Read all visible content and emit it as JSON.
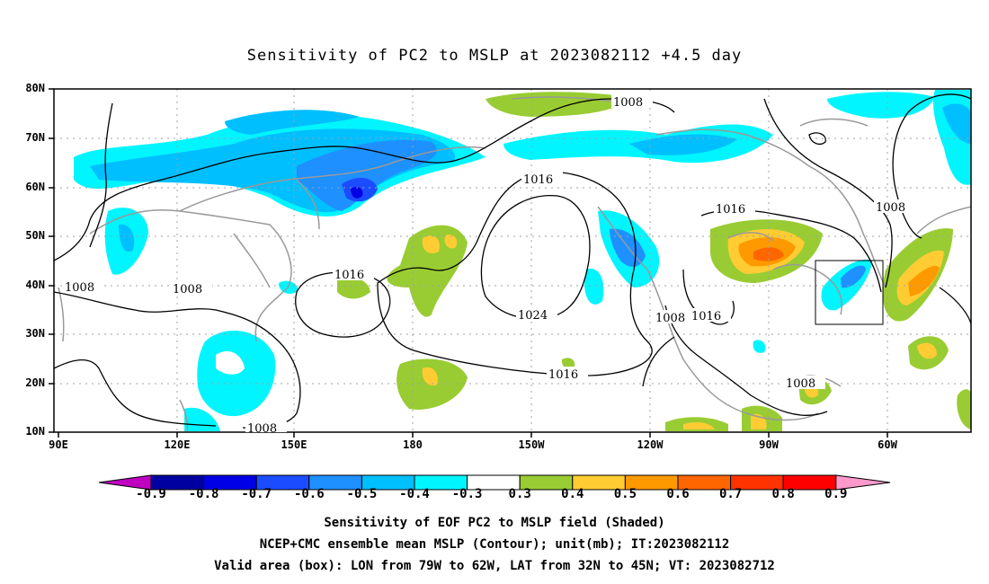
{
  "title": "Sensitivity of PC2 to MSLP at 2023082112 +4.5 day",
  "lat_labels": [
    "80N",
    "70N",
    "60N",
    "50N",
    "40N",
    "30N",
    "20N",
    "10N"
  ],
  "lon_labels": [
    "90E",
    "120E",
    "150E",
    "180",
    "150W",
    "120W",
    "90W",
    "60W"
  ],
  "contour_labels": [
    "1008",
    "1016",
    "1016",
    "1024",
    "1016",
    "1008",
    "1008",
    "1008",
    "1008",
    "1016",
    "1008",
    "1016",
    "1008"
  ],
  "colorbar": {
    "labels": [
      "-0.9",
      "-0.8",
      "-0.7",
      "-0.6",
      "-0.5",
      "-0.4",
      "-0.3",
      "0.3",
      "0.4",
      "0.5",
      "0.6",
      "0.7",
      "0.8",
      "0.9"
    ],
    "colors": [
      "#c000c0",
      "#0000a0",
      "#0000e6",
      "#1c4cff",
      "#1e90ff",
      "#00bfff",
      "#00f5ff",
      "#ffffff",
      "#99cc33",
      "#ffcc33",
      "#ff9900",
      "#ff6600",
      "#ff3300",
      "#ff0000",
      "#ff99cc"
    ]
  },
  "captions": [
    "Sensitivity of EOF PC2 to MSLP field (Shaded)",
    "NCEP+CMC ensemble mean MSLP (Contour); unit(mb); IT:2023082112",
    "Valid area (box): LON from 79W to 62W, LAT from 32N to 45N; VT: 2023082712"
  ],
  "valid_box": {
    "lon_from": "79W",
    "lon_to": "62W",
    "lat_from": "32N",
    "lat_to": "45N"
  }
}
